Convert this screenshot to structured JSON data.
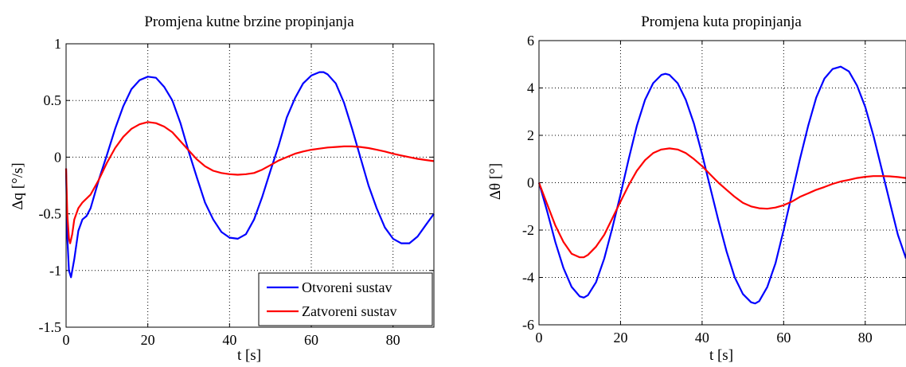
{
  "chart_data": [
    {
      "type": "line",
      "title": "Promjena kutne brzine propinjanja",
      "xlabel": "t [s]",
      "ylabel": "Δq [°/s]",
      "xlim": [
        0,
        90
      ],
      "ylim": [
        -1.5,
        1
      ],
      "xticks": [
        "0",
        "20",
        "40",
        "60",
        "80"
      ],
      "yticks": [
        "-1.5",
        "-1",
        "-0.5",
        "0",
        "0.5",
        "1"
      ],
      "grid": true,
      "legend_position": "bottom-right",
      "series": [
        {
          "name": "Otvoreni sustav",
          "color": "#0000ff",
          "points": [
            [
              0,
              -0.1
            ],
            [
              0.3,
              -0.7
            ],
            [
              0.7,
              -1.0
            ],
            [
              1.2,
              -1.06
            ],
            [
              2,
              -0.9
            ],
            [
              3,
              -0.65
            ],
            [
              4,
              -0.55
            ],
            [
              5,
              -0.52
            ],
            [
              6,
              -0.45
            ],
            [
              8,
              -0.2
            ],
            [
              10,
              0.02
            ],
            [
              12,
              0.25
            ],
            [
              14,
              0.45
            ],
            [
              16,
              0.6
            ],
            [
              18,
              0.68
            ],
            [
              20,
              0.71
            ],
            [
              22,
              0.7
            ],
            [
              24,
              0.62
            ],
            [
              26,
              0.5
            ],
            [
              28,
              0.3
            ],
            [
              30,
              0.05
            ],
            [
              32,
              -0.18
            ],
            [
              34,
              -0.4
            ],
            [
              36,
              -0.55
            ],
            [
              38,
              -0.66
            ],
            [
              40,
              -0.71
            ],
            [
              42,
              -0.72
            ],
            [
              44,
              -0.68
            ],
            [
              46,
              -0.55
            ],
            [
              48,
              -0.35
            ],
            [
              50,
              -0.12
            ],
            [
              52,
              0.1
            ],
            [
              54,
              0.35
            ],
            [
              56,
              0.52
            ],
            [
              58,
              0.65
            ],
            [
              60,
              0.72
            ],
            [
              62,
              0.75
            ],
            [
              63,
              0.75
            ],
            [
              64,
              0.73
            ],
            [
              66,
              0.65
            ],
            [
              68,
              0.48
            ],
            [
              70,
              0.25
            ],
            [
              72,
              0.0
            ],
            [
              74,
              -0.25
            ],
            [
              76,
              -0.45
            ],
            [
              78,
              -0.62
            ],
            [
              80,
              -0.72
            ],
            [
              82,
              -0.76
            ],
            [
              84,
              -0.76
            ],
            [
              86,
              -0.7
            ],
            [
              88,
              -0.6
            ],
            [
              90,
              -0.5
            ]
          ]
        },
        {
          "name": "Zatvoreni sustav",
          "color": "#ff0000",
          "points": [
            [
              0,
              -0.1
            ],
            [
              0.3,
              -0.5
            ],
            [
              0.7,
              -0.72
            ],
            [
              1,
              -0.76
            ],
            [
              1.5,
              -0.68
            ],
            [
              2,
              -0.55
            ],
            [
              3,
              -0.45
            ],
            [
              4,
              -0.4
            ],
            [
              6,
              -0.33
            ],
            [
              8,
              -0.2
            ],
            [
              10,
              -0.05
            ],
            [
              12,
              0.08
            ],
            [
              14,
              0.18
            ],
            [
              16,
              0.25
            ],
            [
              18,
              0.29
            ],
            [
              20,
              0.31
            ],
            [
              22,
              0.3
            ],
            [
              24,
              0.27
            ],
            [
              26,
              0.22
            ],
            [
              28,
              0.14
            ],
            [
              30,
              0.06
            ],
            [
              32,
              -0.02
            ],
            [
              34,
              -0.08
            ],
            [
              36,
              -0.12
            ],
            [
              38,
              -0.14
            ],
            [
              40,
              -0.15
            ],
            [
              42,
              -0.155
            ],
            [
              44,
              -0.15
            ],
            [
              46,
              -0.14
            ],
            [
              48,
              -0.11
            ],
            [
              50,
              -0.07
            ],
            [
              52,
              -0.03
            ],
            [
              54,
              0.0
            ],
            [
              56,
              0.03
            ],
            [
              58,
              0.05
            ],
            [
              60,
              0.065
            ],
            [
              62,
              0.075
            ],
            [
              64,
              0.085
            ],
            [
              66,
              0.09
            ],
            [
              68,
              0.095
            ],
            [
              70,
              0.095
            ],
            [
              72,
              0.09
            ],
            [
              74,
              0.08
            ],
            [
              76,
              0.065
            ],
            [
              78,
              0.05
            ],
            [
              80,
              0.03
            ],
            [
              82,
              0.015
            ],
            [
              84,
              0.0
            ],
            [
              86,
              -0.015
            ],
            [
              88,
              -0.025
            ],
            [
              90,
              -0.035
            ]
          ]
        }
      ]
    },
    {
      "type": "line",
      "title": "Promjena kuta propinjanja",
      "xlabel": "t [s]",
      "ylabel": "Δθ [°]",
      "xlim": [
        0,
        90
      ],
      "ylim": [
        -6,
        6
      ],
      "xticks": [
        "0",
        "20",
        "40",
        "60",
        "80"
      ],
      "yticks": [
        "-6",
        "-4",
        "-2",
        "0",
        "2",
        "4",
        "6"
      ],
      "grid": true,
      "series": [
        {
          "color": "#0000ff",
          "points": [
            [
              0,
              0
            ],
            [
              2,
              -1.2
            ],
            [
              4,
              -2.5
            ],
            [
              6,
              -3.6
            ],
            [
              8,
              -4.4
            ],
            [
              10,
              -4.8
            ],
            [
              11,
              -4.85
            ],
            [
              12,
              -4.75
            ],
            [
              14,
              -4.2
            ],
            [
              16,
              -3.2
            ],
            [
              18,
              -1.9
            ],
            [
              20,
              -0.5
            ],
            [
              22,
              1.0
            ],
            [
              24,
              2.4
            ],
            [
              26,
              3.5
            ],
            [
              28,
              4.2
            ],
            [
              30,
              4.55
            ],
            [
              31,
              4.6
            ],
            [
              32,
              4.55
            ],
            [
              34,
              4.2
            ],
            [
              36,
              3.5
            ],
            [
              38,
              2.5
            ],
            [
              40,
              1.2
            ],
            [
              42,
              -0.2
            ],
            [
              44,
              -1.6
            ],
            [
              46,
              -2.9
            ],
            [
              48,
              -4.0
            ],
            [
              50,
              -4.7
            ],
            [
              52,
              -5.05
            ],
            [
              53,
              -5.1
            ],
            [
              54,
              -5.0
            ],
            [
              56,
              -4.4
            ],
            [
              58,
              -3.4
            ],
            [
              60,
              -2.0
            ],
            [
              62,
              -0.5
            ],
            [
              64,
              1.0
            ],
            [
              66,
              2.4
            ],
            [
              68,
              3.6
            ],
            [
              70,
              4.4
            ],
            [
              72,
              4.8
            ],
            [
              74,
              4.9
            ],
            [
              76,
              4.7
            ],
            [
              78,
              4.1
            ],
            [
              80,
              3.2
            ],
            [
              82,
              2.0
            ],
            [
              84,
              0.6
            ],
            [
              86,
              -0.8
            ],
            [
              88,
              -2.2
            ],
            [
              90,
              -3.2
            ]
          ]
        },
        {
          "color": "#ff0000",
          "points": [
            [
              0,
              0
            ],
            [
              2,
              -0.9
            ],
            [
              4,
              -1.8
            ],
            [
              6,
              -2.5
            ],
            [
              8,
              -3.0
            ],
            [
              10,
              -3.15
            ],
            [
              11,
              -3.15
            ],
            [
              12,
              -3.05
            ],
            [
              14,
              -2.7
            ],
            [
              16,
              -2.2
            ],
            [
              18,
              -1.5
            ],
            [
              20,
              -0.8
            ],
            [
              22,
              -0.1
            ],
            [
              24,
              0.5
            ],
            [
              26,
              0.95
            ],
            [
              28,
              1.25
            ],
            [
              30,
              1.4
            ],
            [
              32,
              1.45
            ],
            [
              34,
              1.4
            ],
            [
              36,
              1.25
            ],
            [
              38,
              1.0
            ],
            [
              40,
              0.7
            ],
            [
              42,
              0.35
            ],
            [
              44,
              0.0
            ],
            [
              46,
              -0.3
            ],
            [
              48,
              -0.6
            ],
            [
              50,
              -0.85
            ],
            [
              52,
              -1.0
            ],
            [
              54,
              -1.08
            ],
            [
              56,
              -1.1
            ],
            [
              58,
              -1.05
            ],
            [
              60,
              -0.95
            ],
            [
              62,
              -0.8
            ],
            [
              64,
              -0.6
            ],
            [
              66,
              -0.45
            ],
            [
              68,
              -0.3
            ],
            [
              70,
              -0.18
            ],
            [
              72,
              -0.05
            ],
            [
              74,
              0.05
            ],
            [
              76,
              0.12
            ],
            [
              78,
              0.2
            ],
            [
              80,
              0.25
            ],
            [
              82,
              0.28
            ],
            [
              84,
              0.28
            ],
            [
              86,
              0.27
            ],
            [
              88,
              0.24
            ],
            [
              90,
              0.2
            ]
          ]
        }
      ]
    }
  ]
}
